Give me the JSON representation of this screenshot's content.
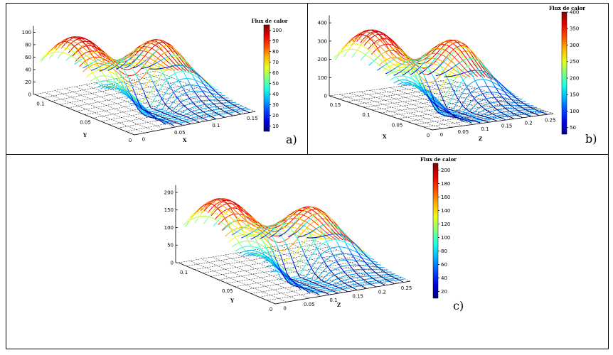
{
  "chart_data": [
    {
      "type": "contour3d",
      "panel": "a)",
      "colorbar_title": "Flux de calor",
      "colorbar_ticks": [
        10,
        20,
        30,
        40,
        50,
        60,
        70,
        80,
        90,
        100
      ],
      "colorbar_range": [
        5,
        105
      ],
      "z_ticks": [
        0,
        20,
        40,
        60,
        80,
        100
      ],
      "z_range": [
        0,
        105
      ],
      "left_axis": {
        "label": "Y",
        "ticks": [
          "0",
          "0.05",
          "0.1"
        ]
      },
      "right_axis": {
        "label": "X",
        "ticks": [
          "0",
          "0.05",
          "0.1",
          "0.15"
        ]
      },
      "peak_primary": 105,
      "peak_secondary": 82,
      "peak_left": 55
    },
    {
      "type": "contour3d",
      "panel": "b)",
      "colorbar_title": "Flux de calor",
      "colorbar_ticks": [
        50,
        100,
        150,
        200,
        250,
        300,
        350,
        400
      ],
      "colorbar_range": [
        30,
        400
      ],
      "z_ticks": [
        0,
        100,
        200,
        300,
        400
      ],
      "z_range": [
        0,
        420
      ],
      "left_axis": {
        "label": "X",
        "ticks": [
          "0",
          "0.05",
          "0.1",
          "0.15"
        ]
      },
      "right_axis": {
        "label": "Z",
        "ticks": [
          "0",
          "0.05",
          "0.1",
          "0.15",
          "0.2",
          "0.25"
        ]
      },
      "peak_primary": 400,
      "peak_secondary": 300,
      "peak_left": 180
    },
    {
      "type": "contour3d",
      "panel": "c)",
      "colorbar_title": "Flux de calor",
      "colorbar_ticks": [
        20,
        40,
        60,
        80,
        100,
        120,
        140,
        160,
        180,
        200
      ],
      "colorbar_range": [
        10,
        210
      ],
      "z_ticks": [
        0,
        50,
        100,
        150,
        200
      ],
      "z_range": [
        0,
        210
      ],
      "left_axis": {
        "label": "Y",
        "ticks": [
          "0",
          "0.05",
          "0.1"
        ]
      },
      "right_axis": {
        "label": "Z",
        "ticks": [
          "0",
          "0.05",
          "0.1",
          "0.15",
          "0.2",
          "0.25"
        ]
      },
      "peak_primary": 205,
      "peak_secondary": 150,
      "peak_left": 100
    }
  ]
}
